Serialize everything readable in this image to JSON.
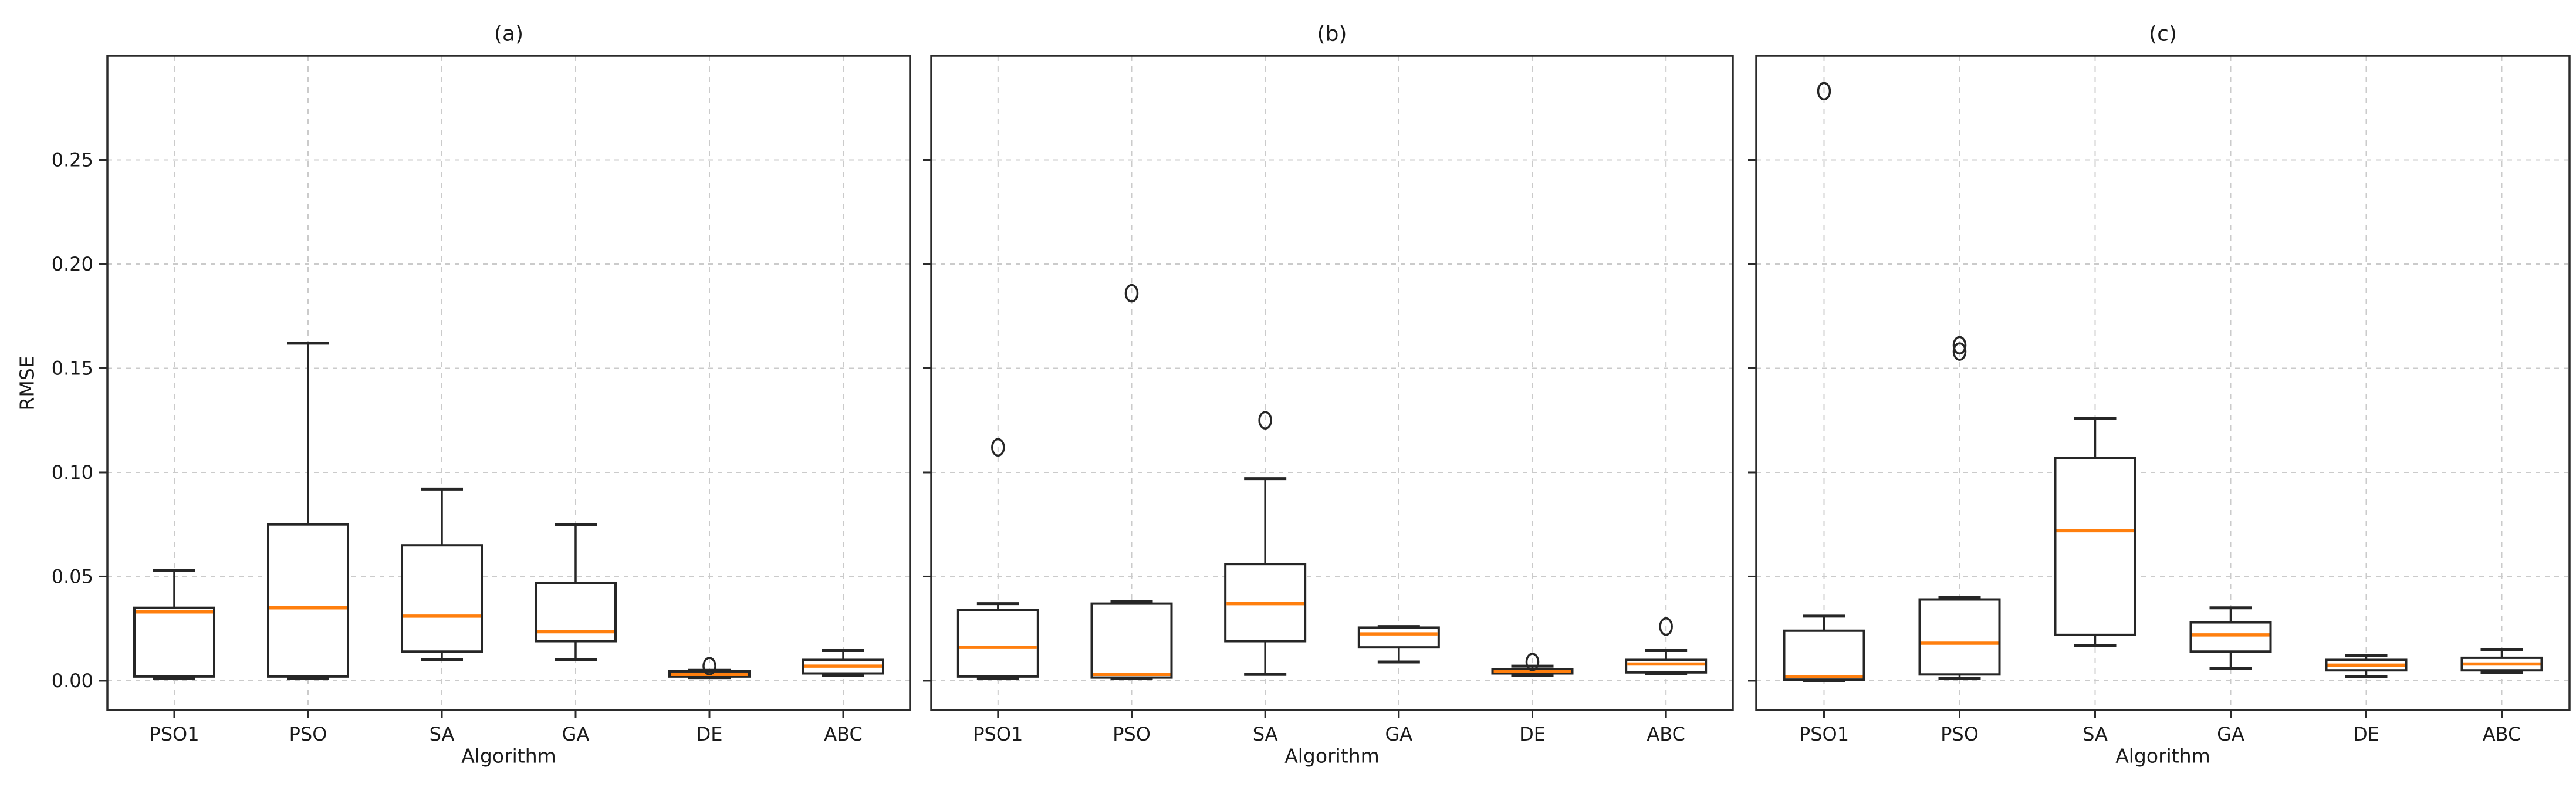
{
  "figure": {
    "background": "#ffffff",
    "ylabel": "RMSE",
    "xlabel": "Algorithm",
    "colors": {
      "box_line": "#262626",
      "median": "#ff7f0e",
      "grid": "#cbcbcb",
      "spine": "#2b2b2b",
      "text": "#1a1a1a"
    },
    "y_ticks": {
      "values": [
        0.0,
        0.05,
        0.1,
        0.15,
        0.2,
        0.25
      ],
      "labels": [
        "0.00",
        "0.05",
        "0.10",
        "0.15",
        "0.20",
        "0.25"
      ],
      "labels_shown_on": "first subplot only, tick marks on all subplots"
    }
  },
  "chart_data": [
    {
      "type": "box",
      "title": "(a)",
      "xlabel": "Algorithm",
      "ylabel": "RMSE",
      "grid": true,
      "legend": false,
      "ylim": [
        -0.014,
        0.3
      ],
      "categories": [
        "PSO1",
        "PSO",
        "SA",
        "GA",
        "DE",
        "ABC"
      ],
      "series": [
        {
          "name": "PSO1",
          "whisker_low": 0.001,
          "q1": 0.002,
          "median": 0.033,
          "q3": 0.035,
          "whisker_high": 0.053,
          "outliers": []
        },
        {
          "name": "PSO",
          "whisker_low": 0.001,
          "q1": 0.002,
          "median": 0.035,
          "q3": 0.075,
          "whisker_high": 0.162,
          "outliers": []
        },
        {
          "name": "SA",
          "whisker_low": 0.01,
          "q1": 0.014,
          "median": 0.031,
          "q3": 0.065,
          "whisker_high": 0.092,
          "outliers": []
        },
        {
          "name": "GA",
          "whisker_low": 0.01,
          "q1": 0.019,
          "median": 0.0235,
          "q3": 0.047,
          "whisker_high": 0.075,
          "outliers": []
        },
        {
          "name": "DE",
          "whisker_low": 0.0015,
          "q1": 0.002,
          "median": 0.003,
          "q3": 0.0045,
          "whisker_high": 0.005,
          "outliers": [
            0.007
          ]
        },
        {
          "name": "ABC",
          "whisker_low": 0.0025,
          "q1": 0.0035,
          "median": 0.007,
          "q3": 0.01,
          "whisker_high": 0.0145,
          "outliers": []
        }
      ]
    },
    {
      "type": "box",
      "title": "(b)",
      "xlabel": "Algorithm",
      "ylabel": "",
      "grid": true,
      "legend": false,
      "ylim": [
        -0.014,
        0.3
      ],
      "categories": [
        "PSO1",
        "PSO",
        "SA",
        "GA",
        "DE",
        "ABC"
      ],
      "series": [
        {
          "name": "PSO1",
          "whisker_low": 0.001,
          "q1": 0.002,
          "median": 0.016,
          "q3": 0.034,
          "whisker_high": 0.037,
          "outliers": [
            0.112
          ]
        },
        {
          "name": "PSO",
          "whisker_low": 0.001,
          "q1": 0.0015,
          "median": 0.003,
          "q3": 0.037,
          "whisker_high": 0.038,
          "outliers": [
            0.186
          ]
        },
        {
          "name": "SA",
          "whisker_low": 0.003,
          "q1": 0.019,
          "median": 0.037,
          "q3": 0.056,
          "whisker_high": 0.097,
          "outliers": [
            0.125
          ]
        },
        {
          "name": "GA",
          "whisker_low": 0.009,
          "q1": 0.016,
          "median": 0.0225,
          "q3": 0.0255,
          "whisker_high": 0.026,
          "outliers": []
        },
        {
          "name": "DE",
          "whisker_low": 0.0025,
          "q1": 0.0035,
          "median": 0.0045,
          "q3": 0.0055,
          "whisker_high": 0.007,
          "outliers": [
            0.009
          ]
        },
        {
          "name": "ABC",
          "whisker_low": 0.0035,
          "q1": 0.004,
          "median": 0.008,
          "q3": 0.01,
          "whisker_high": 0.0145,
          "outliers": [
            0.026
          ]
        }
      ]
    },
    {
      "type": "box",
      "title": "(c)",
      "xlabel": "Algorithm",
      "ylabel": "",
      "grid": true,
      "legend": false,
      "ylim": [
        -0.014,
        0.3
      ],
      "categories": [
        "PSO1",
        "PSO",
        "SA",
        "GA",
        "DE",
        "ABC"
      ],
      "series": [
        {
          "name": "PSO1",
          "whisker_low": 0.0,
          "q1": 0.0005,
          "median": 0.002,
          "q3": 0.024,
          "whisker_high": 0.031,
          "outliers": [
            0.283
          ]
        },
        {
          "name": "PSO",
          "whisker_low": 0.001,
          "q1": 0.003,
          "median": 0.018,
          "q3": 0.039,
          "whisker_high": 0.04,
          "outliers": [
            0.158,
            0.161
          ]
        },
        {
          "name": "SA",
          "whisker_low": 0.017,
          "q1": 0.022,
          "median": 0.072,
          "q3": 0.107,
          "whisker_high": 0.126,
          "outliers": []
        },
        {
          "name": "GA",
          "whisker_low": 0.006,
          "q1": 0.014,
          "median": 0.022,
          "q3": 0.028,
          "whisker_high": 0.035,
          "outliers": []
        },
        {
          "name": "DE",
          "whisker_low": 0.002,
          "q1": 0.005,
          "median": 0.0075,
          "q3": 0.01,
          "whisker_high": 0.012,
          "outliers": []
        },
        {
          "name": "ABC",
          "whisker_low": 0.004,
          "q1": 0.005,
          "median": 0.008,
          "q3": 0.011,
          "whisker_high": 0.015,
          "outliers": []
        }
      ]
    }
  ]
}
